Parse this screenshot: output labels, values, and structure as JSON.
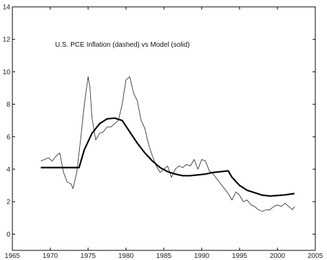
{
  "chart_data": {
    "type": "line",
    "title": "U.S. PCE Inflation (dashed) vs Model (solid)",
    "xlabel": "",
    "ylabel": "",
    "xlim": [
      1965,
      2005
    ],
    "ylim": [
      -1,
      14
    ],
    "xticks": [
      1965,
      1970,
      1975,
      1980,
      1985,
      1990,
      1995,
      2000,
      2005
    ],
    "yticks": [
      0,
      2,
      4,
      6,
      8,
      10,
      12,
      14
    ],
    "grid": false,
    "series": [
      {
        "style": "thin",
        "x": [
          1968.75,
          1969.25,
          1969.75,
          1970.25,
          1970.75,
          1971.25,
          1971.75,
          1972.25,
          1972.75,
          1973.0,
          1973.5,
          1974.0,
          1974.5,
          1975.0,
          1975.25,
          1975.5,
          1976.0,
          1976.5,
          1977.0,
          1977.5,
          1978.0,
          1978.5,
          1979.0,
          1979.5,
          1980.0,
          1980.5,
          1981.0,
          1981.5,
          1982.0,
          1982.5,
          1983.0,
          1983.5,
          1984.0,
          1984.5,
          1985.0,
          1985.5,
          1986.0,
          1986.5,
          1987.0,
          1987.5,
          1988.0,
          1988.5,
          1989.0,
          1989.5,
          1990.0,
          1990.5,
          1991.0,
          1991.5,
          1992.0,
          1992.5,
          1993.0,
          1993.5,
          1994.0,
          1994.5,
          1995.0,
          1995.5,
          1996.0,
          1996.5,
          1997.0,
          1997.5,
          1998.0,
          1998.5,
          1999.0,
          1999.5,
          2000.0,
          2000.5,
          2001.0,
          2001.5,
          2002.0,
          2002.25
        ],
        "y": [
          4.5,
          4.6,
          4.7,
          4.5,
          4.8,
          5.0,
          3.8,
          3.2,
          3.1,
          2.8,
          3.8,
          5.8,
          8.0,
          9.7,
          9.0,
          7.2,
          5.8,
          6.2,
          6.3,
          6.6,
          6.6,
          6.8,
          7.0,
          8.0,
          9.5,
          9.7,
          8.7,
          8.2,
          7.0,
          6.5,
          5.5,
          4.8,
          4.2,
          3.8,
          4.0,
          4.2,
          3.5,
          4.0,
          4.2,
          4.1,
          4.3,
          4.2,
          4.6,
          4.0,
          4.6,
          4.5,
          3.9,
          3.7,
          3.4,
          3.1,
          2.8,
          2.5,
          2.1,
          2.6,
          2.4,
          2.0,
          2.1,
          1.8,
          1.7,
          1.5,
          1.4,
          1.5,
          1.5,
          1.7,
          1.8,
          1.7,
          1.9,
          1.7,
          1.5,
          1.7
        ]
      },
      {
        "style": "thick",
        "x": [
          1968.75,
          1970,
          1971,
          1972,
          1973,
          1973.8,
          1974.5,
          1975.5,
          1976.5,
          1977.5,
          1978.5,
          1979.5,
          1980.5,
          1981.5,
          1982.5,
          1983.5,
          1984.5,
          1985.5,
          1986.5,
          1987.5,
          1988.5,
          1989.5,
          1990.5,
          1991.5,
          1992.5,
          1993.5,
          1994.0,
          1995.0,
          1996.0,
          1997.0,
          1998.0,
          1999.0,
          2000.0,
          2001.0,
          2002.25
        ],
        "y": [
          4.1,
          4.1,
          4.1,
          4.1,
          4.1,
          4.1,
          5.2,
          6.2,
          6.8,
          7.1,
          7.15,
          7.0,
          6.3,
          5.6,
          5.0,
          4.5,
          4.1,
          3.85,
          3.7,
          3.6,
          3.6,
          3.65,
          3.7,
          3.8,
          3.85,
          3.9,
          3.5,
          3.0,
          2.7,
          2.55,
          2.4,
          2.35,
          2.38,
          2.42,
          2.5
        ]
      }
    ]
  }
}
